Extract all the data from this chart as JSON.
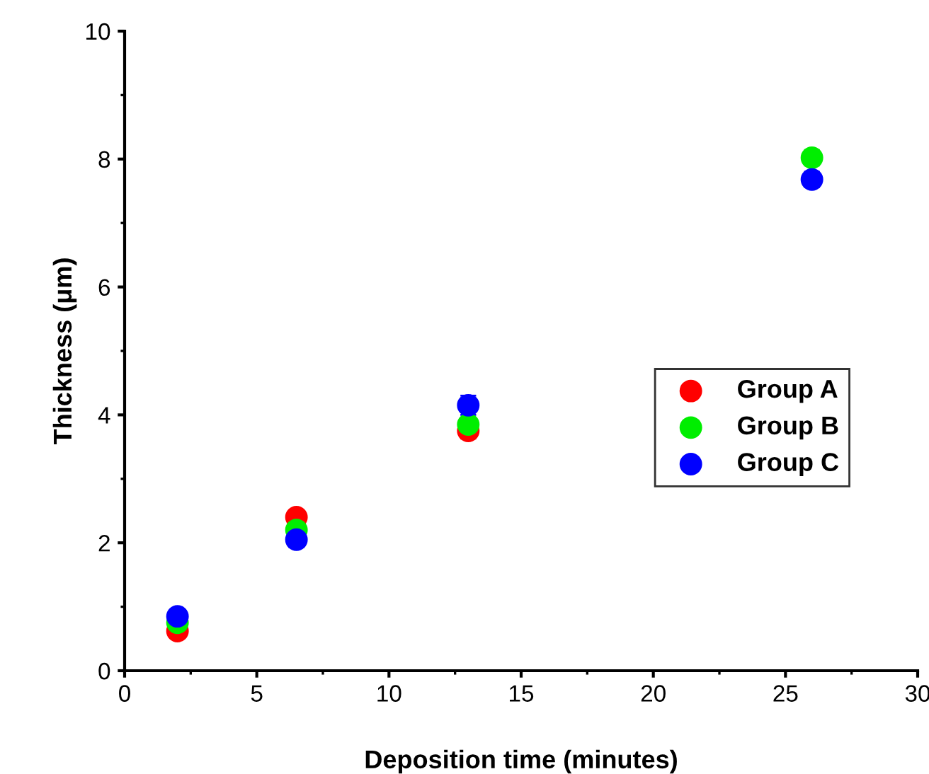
{
  "chart_data": {
    "type": "scatter",
    "xlabel": "Deposition time (minutes)",
    "ylabel": "Thickness (μm)",
    "x": [
      2,
      6.5,
      13,
      26
    ],
    "series": [
      {
        "name": "Group A",
        "color": "#ff0000",
        "values": [
          0.62,
          2.4,
          3.75,
          null
        ],
        "errors": [
          0.05,
          0.1,
          0.12,
          null
        ]
      },
      {
        "name": "Group B",
        "color": "#00ee00",
        "values": [
          0.75,
          2.2,
          3.85,
          8.02
        ],
        "errors": [
          0.05,
          0.1,
          0.1,
          0.12
        ]
      },
      {
        "name": "Group C",
        "color": "#0000ff",
        "values": [
          0.85,
          2.05,
          4.15,
          7.68
        ],
        "errors": [
          0.05,
          0.12,
          0.15,
          0.12
        ]
      }
    ],
    "xlim": [
      0,
      30
    ],
    "xticks": [
      0,
      5,
      10,
      15,
      20,
      25,
      30
    ],
    "ylim": [
      0,
      10
    ],
    "yticks": [
      0,
      2,
      4,
      6,
      8,
      10
    ],
    "marker": "circle",
    "legend": "right",
    "grid": false
  }
}
